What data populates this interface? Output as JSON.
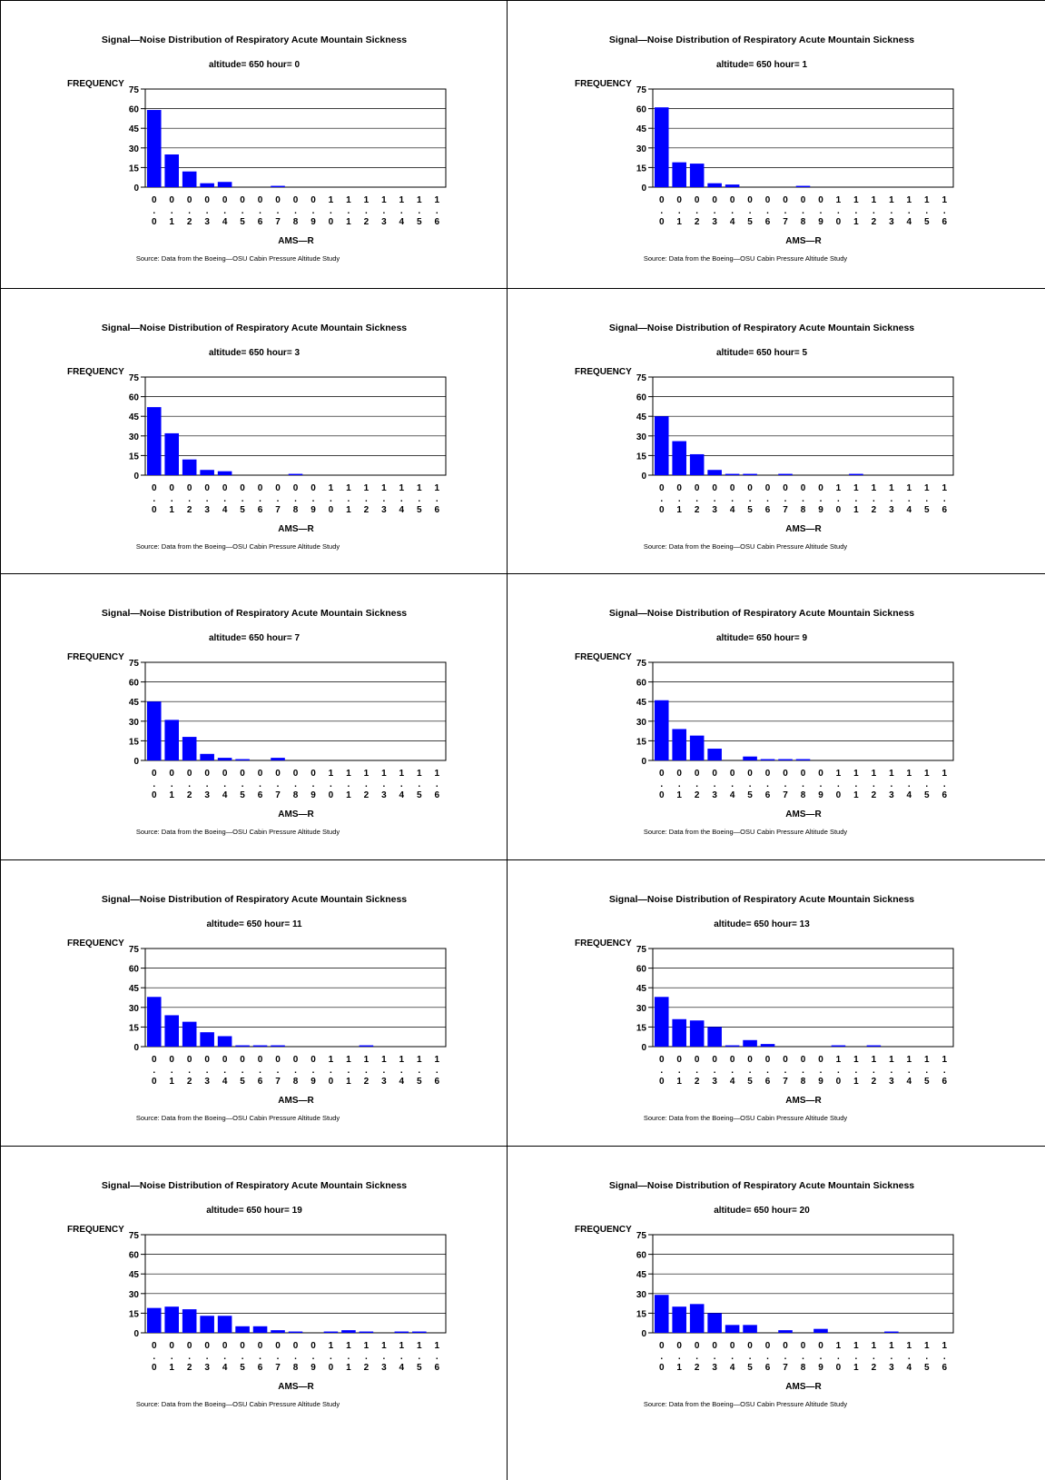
{
  "common": {
    "title": "Signal—Noise Distribution of Respiratory Acute Mountain Sickness",
    "ylabel": "FREQUENCY",
    "xlabel": "AMS—R",
    "source": "Source: Data from the Boeing—OSU Cabin Pressure Altitude Study",
    "bar_color": "#0000FF"
  },
  "chart_data": [
    {
      "type": "bar",
      "subtitle": "altitude= 650  hour= 0",
      "categories": [
        "0.0",
        "0.1",
        "0.2",
        "0.3",
        "0.4",
        "0.5",
        "0.6",
        "0.7",
        "0.8",
        "0.9",
        "1.0",
        "1.1",
        "1.2",
        "1.3",
        "1.4",
        "1.5",
        "1.6"
      ],
      "values": [
        59,
        25,
        12,
        3,
        4,
        0,
        0,
        1,
        0,
        0,
        0,
        0,
        0,
        0,
        0,
        0,
        0
      ],
      "ylim": [
        0,
        75
      ],
      "yticks": [
        0,
        15,
        30,
        45,
        60,
        75
      ],
      "grid": true
    },
    {
      "type": "bar",
      "subtitle": "altitude= 650  hour= 1",
      "categories": [
        "0.0",
        "0.1",
        "0.2",
        "0.3",
        "0.4",
        "0.5",
        "0.6",
        "0.7",
        "0.8",
        "0.9",
        "1.0",
        "1.1",
        "1.2",
        "1.3",
        "1.4",
        "1.5",
        "1.6"
      ],
      "values": [
        61,
        19,
        18,
        3,
        2,
        0,
        0,
        0,
        1,
        0,
        0,
        0,
        0,
        0,
        0,
        0,
        0
      ],
      "ylim": [
        0,
        75
      ],
      "yticks": [
        0,
        15,
        30,
        45,
        60,
        75
      ],
      "grid": true
    },
    {
      "type": "bar",
      "subtitle": "altitude= 650  hour= 3",
      "categories": [
        "0.0",
        "0.1",
        "0.2",
        "0.3",
        "0.4",
        "0.5",
        "0.6",
        "0.7",
        "0.8",
        "0.9",
        "1.0",
        "1.1",
        "1.2",
        "1.3",
        "1.4",
        "1.5",
        "1.6"
      ],
      "values": [
        52,
        32,
        12,
        4,
        3,
        0,
        0,
        0,
        1,
        0,
        0,
        0,
        0,
        0,
        0,
        0,
        0
      ],
      "ylim": [
        0,
        75
      ],
      "yticks": [
        0,
        15,
        30,
        45,
        60,
        75
      ],
      "grid": true
    },
    {
      "type": "bar",
      "subtitle": "altitude= 650  hour= 5",
      "categories": [
        "0.0",
        "0.1",
        "0.2",
        "0.3",
        "0.4",
        "0.5",
        "0.6",
        "0.7",
        "0.8",
        "0.9",
        "1.0",
        "1.1",
        "1.2",
        "1.3",
        "1.4",
        "1.5",
        "1.6"
      ],
      "values": [
        45,
        26,
        16,
        4,
        1,
        1,
        0,
        1,
        0,
        0,
        0,
        1,
        0,
        0,
        0,
        0,
        0
      ],
      "ylim": [
        0,
        75
      ],
      "yticks": [
        0,
        15,
        30,
        45,
        60,
        75
      ],
      "grid": true
    },
    {
      "type": "bar",
      "subtitle": "altitude= 650  hour= 7",
      "categories": [
        "0.0",
        "0.1",
        "0.2",
        "0.3",
        "0.4",
        "0.5",
        "0.6",
        "0.7",
        "0.8",
        "0.9",
        "1.0",
        "1.1",
        "1.2",
        "1.3",
        "1.4",
        "1.5",
        "1.6"
      ],
      "values": [
        45,
        31,
        18,
        5,
        2,
        1,
        0,
        2,
        0,
        0,
        0,
        0,
        0,
        0,
        0,
        0,
        0
      ],
      "ylim": [
        0,
        75
      ],
      "yticks": [
        0,
        15,
        30,
        45,
        60,
        75
      ],
      "grid": true
    },
    {
      "type": "bar",
      "subtitle": "altitude= 650  hour= 9",
      "categories": [
        "0.0",
        "0.1",
        "0.2",
        "0.3",
        "0.4",
        "0.5",
        "0.6",
        "0.7",
        "0.8",
        "0.9",
        "1.0",
        "1.1",
        "1.2",
        "1.3",
        "1.4",
        "1.5",
        "1.6"
      ],
      "values": [
        46,
        24,
        19,
        9,
        0,
        3,
        1,
        1,
        1,
        0,
        0,
        0,
        0,
        0,
        0,
        0,
        0
      ],
      "ylim": [
        0,
        75
      ],
      "yticks": [
        0,
        15,
        30,
        45,
        60,
        75
      ],
      "grid": true
    },
    {
      "type": "bar",
      "subtitle": "altitude= 650  hour= 11",
      "categories": [
        "0.0",
        "0.1",
        "0.2",
        "0.3",
        "0.4",
        "0.5",
        "0.6",
        "0.7",
        "0.8",
        "0.9",
        "1.0",
        "1.1",
        "1.2",
        "1.3",
        "1.4",
        "1.5",
        "1.6"
      ],
      "values": [
        38,
        24,
        19,
        11,
        8,
        1,
        1,
        1,
        0,
        0,
        0,
        0,
        1,
        0,
        0,
        0,
        0
      ],
      "ylim": [
        0,
        75
      ],
      "yticks": [
        0,
        15,
        30,
        45,
        60,
        75
      ],
      "grid": true
    },
    {
      "type": "bar",
      "subtitle": "altitude= 650  hour= 13",
      "categories": [
        "0.0",
        "0.1",
        "0.2",
        "0.3",
        "0.4",
        "0.5",
        "0.6",
        "0.7",
        "0.8",
        "0.9",
        "1.0",
        "1.1",
        "1.2",
        "1.3",
        "1.4",
        "1.5",
        "1.6"
      ],
      "values": [
        38,
        21,
        20,
        15,
        1,
        5,
        2,
        0,
        0,
        0,
        1,
        0,
        1,
        0,
        0,
        0,
        0
      ],
      "ylim": [
        0,
        75
      ],
      "yticks": [
        0,
        15,
        30,
        45,
        60,
        75
      ],
      "grid": true
    },
    {
      "type": "bar",
      "subtitle": "altitude= 650  hour= 19",
      "categories": [
        "0.0",
        "0.1",
        "0.2",
        "0.3",
        "0.4",
        "0.5",
        "0.6",
        "0.7",
        "0.8",
        "0.9",
        "1.0",
        "1.1",
        "1.2",
        "1.3",
        "1.4",
        "1.5",
        "1.6"
      ],
      "values": [
        19,
        20,
        18,
        13,
        13,
        5,
        5,
        2,
        1,
        0,
        1,
        2,
        1,
        0,
        1,
        1,
        0
      ],
      "ylim": [
        0,
        75
      ],
      "yticks": [
        0,
        15,
        30,
        45,
        60,
        75
      ],
      "grid": true
    },
    {
      "type": "bar",
      "subtitle": "altitude= 650  hour= 20",
      "categories": [
        "0.0",
        "0.1",
        "0.2",
        "0.3",
        "0.4",
        "0.5",
        "0.6",
        "0.7",
        "0.8",
        "0.9",
        "1.0",
        "1.1",
        "1.2",
        "1.3",
        "1.4",
        "1.5",
        "1.6"
      ],
      "values": [
        29,
        20,
        22,
        15,
        6,
        6,
        0,
        2,
        0,
        3,
        0,
        0,
        0,
        1,
        0,
        0,
        0
      ],
      "ylim": [
        0,
        75
      ],
      "yticks": [
        0,
        15,
        30,
        45,
        60,
        75
      ],
      "grid": true
    }
  ]
}
